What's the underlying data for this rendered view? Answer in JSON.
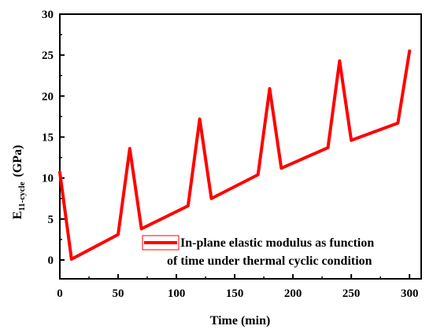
{
  "chart_data": {
    "type": "line",
    "xlabel": "Time (min)",
    "ylabel_main": "E",
    "ylabel_sub": "11-cycle",
    "ylabel_unit": "(GPa)",
    "xlim": [
      0,
      310
    ],
    "ylim": [
      -2.3,
      30
    ],
    "x_ticks": [
      0,
      50,
      100,
      150,
      200,
      250,
      300
    ],
    "x_tick_labels": [
      "0",
      "50",
      "100",
      "150",
      "200",
      "250",
      "300"
    ],
    "y_ticks": [
      0,
      5,
      10,
      15,
      20,
      25,
      30
    ],
    "y_tick_labels": [
      "0",
      "5",
      "10",
      "15",
      "20",
      "25",
      "30"
    ],
    "series": [
      {
        "name": "In-plane elastic modulus as function of time under thermal cyclic condition",
        "color": "#ff0000",
        "x": [
          0,
          10,
          50,
          60,
          70,
          110,
          120,
          130,
          170,
          180,
          190,
          230,
          240,
          250,
          290,
          300
        ],
        "y": [
          10.7,
          0.1,
          3.1,
          13.6,
          3.8,
          6.6,
          17.2,
          7.5,
          10.4,
          20.9,
          11.2,
          13.7,
          24.3,
          14.6,
          16.7,
          25.5
        ]
      }
    ],
    "legend": {
      "position": "lower-right",
      "line1": "In-plane elastic modulus as function",
      "line2": "of time under thermal cyclic condition"
    }
  }
}
